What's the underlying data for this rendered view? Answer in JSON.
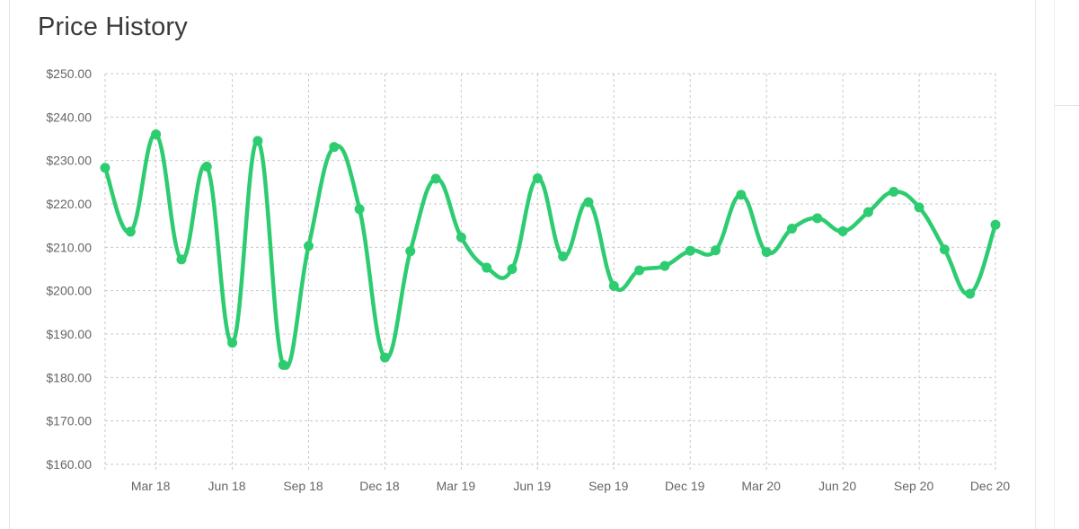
{
  "header": {
    "title": "Price History"
  },
  "colors": {
    "line": "#2ecc71",
    "grid": "#c8c8c8",
    "text": "#666666"
  },
  "chart_data": {
    "type": "line",
    "title": "Price History",
    "xlabel": "",
    "ylabel": "",
    "ylim": [
      160,
      250
    ],
    "y_ticks": [
      "$160.00",
      "$170.00",
      "$180.00",
      "$190.00",
      "$200.00",
      "$210.00",
      "$220.00",
      "$230.00",
      "$240.00",
      "$250.00"
    ],
    "x_ticks": [
      "Mar 18",
      "Jun 18",
      "Sep 18",
      "Dec 18",
      "Mar 19",
      "Jun 19",
      "Sep 19",
      "Dec 19",
      "Mar 20",
      "Jun 20",
      "Sep 20",
      "Dec 20"
    ],
    "x_range": [
      "2018-01",
      "2020-12"
    ],
    "grid": true,
    "legend": "none",
    "series": [
      {
        "x": [
          "2018-01",
          "2018-02",
          "2018-03",
          "2018-04",
          "2018-05",
          "2018-06",
          "2018-07",
          "2018-08",
          "2018-09",
          "2018-10",
          "2018-11",
          "2018-12",
          "2019-01",
          "2019-02",
          "2019-03",
          "2019-04",
          "2019-05",
          "2019-06",
          "2019-07",
          "2019-08",
          "2019-09",
          "2019-10",
          "2019-11",
          "2019-12",
          "2020-01",
          "2020-02",
          "2020-03",
          "2020-04",
          "2020-05",
          "2020-06",
          "2020-07",
          "2020-08",
          "2020-09",
          "2020-10",
          "2020-11",
          "2020-12"
        ],
        "values": [
          228.3,
          213.6,
          236.0,
          207.2,
          228.6,
          188.0,
          234.5,
          182.9,
          210.3,
          233.1,
          218.8,
          184.6,
          209.1,
          225.8,
          212.3,
          205.3,
          205.0,
          225.9,
          207.9,
          220.4,
          201.1,
          204.7,
          205.7,
          209.2,
          209.3,
          222.1,
          208.9,
          214.3,
          216.7,
          213.7,
          218.1,
          222.8,
          219.2,
          209.5,
          199.3,
          215.2
        ]
      }
    ]
  }
}
